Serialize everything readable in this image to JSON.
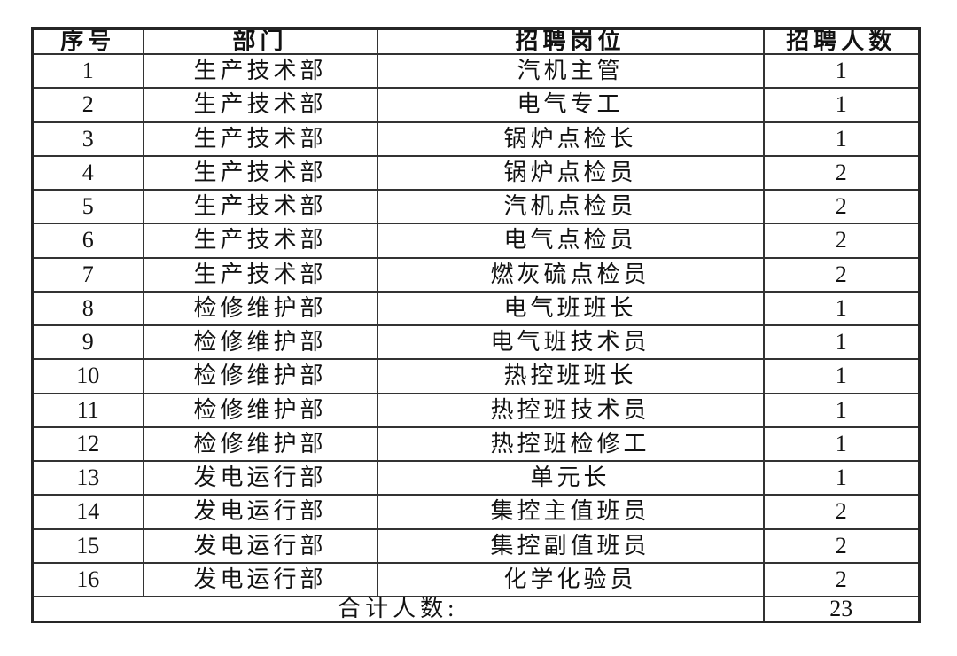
{
  "table": {
    "headers": [
      {
        "key": "no",
        "label": "序号"
      },
      {
        "key": "department",
        "label": "部门"
      },
      {
        "key": "position",
        "label": "招聘岗位"
      },
      {
        "key": "count",
        "label": "招聘人数"
      }
    ],
    "rows": [
      {
        "no": "1",
        "department": "生产技术部",
        "position": "汽机主管",
        "count": "1"
      },
      {
        "no": "2",
        "department": "生产技术部",
        "position": "电气专工",
        "count": "1"
      },
      {
        "no": "3",
        "department": "生产技术部",
        "position": "锅炉点检长",
        "count": "1"
      },
      {
        "no": "4",
        "department": "生产技术部",
        "position": "锅炉点检员",
        "count": "2"
      },
      {
        "no": "5",
        "department": "生产技术部",
        "position": "汽机点检员",
        "count": "2"
      },
      {
        "no": "6",
        "department": "生产技术部",
        "position": "电气点检员",
        "count": "2"
      },
      {
        "no": "7",
        "department": "生产技术部",
        "position": "燃灰硫点检员",
        "count": "2"
      },
      {
        "no": "8",
        "department": "检修维护部",
        "position": "电气班班长",
        "count": "1"
      },
      {
        "no": "9",
        "department": "检修维护部",
        "position": "电气班技术员",
        "count": "1"
      },
      {
        "no": "10",
        "department": "检修维护部",
        "position": "热控班班长",
        "count": "1"
      },
      {
        "no": "11",
        "department": "检修维护部",
        "position": "热控班技术员",
        "count": "1"
      },
      {
        "no": "12",
        "department": "检修维护部",
        "position": "热控班检修工",
        "count": "1"
      },
      {
        "no": "13",
        "department": "发电运行部",
        "position": "单元长",
        "count": "1"
      },
      {
        "no": "14",
        "department": "发电运行部",
        "position": "集控主值班员",
        "count": "2"
      },
      {
        "no": "15",
        "department": "发电运行部",
        "position": "集控副值班员",
        "count": "2"
      },
      {
        "no": "16",
        "department": "发电运行部",
        "position": "化学化验员",
        "count": "2"
      }
    ],
    "total": {
      "label": "合计人数:",
      "count": "23"
    }
  },
  "colors": {
    "background": "#ffffff",
    "border": "#333333",
    "text": "#121212"
  }
}
